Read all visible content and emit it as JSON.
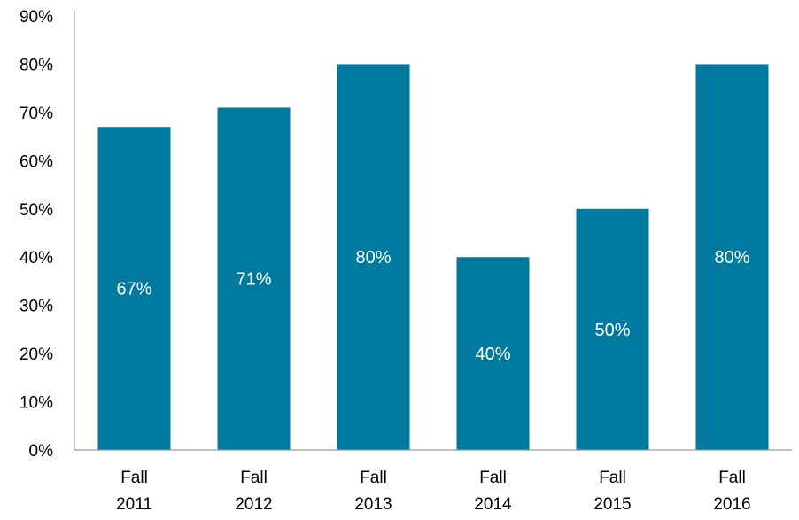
{
  "chart_data": {
    "type": "bar",
    "categories": [
      [
        "Fall",
        "2011"
      ],
      [
        "Fall",
        "2012"
      ],
      [
        "Fall",
        "2013"
      ],
      [
        "Fall",
        "2014"
      ],
      [
        "Fall",
        "2015"
      ],
      [
        "Fall",
        "2016"
      ]
    ],
    "values": [
      67,
      71,
      80,
      40,
      50,
      80
    ],
    "data_labels": [
      "67%",
      "71%",
      "80%",
      "40%",
      "50%",
      "80%"
    ],
    "y_ticks": [
      0,
      10,
      20,
      30,
      40,
      50,
      60,
      70,
      80,
      90
    ],
    "y_tick_labels": [
      "0%",
      "10%",
      "20%",
      "30%",
      "40%",
      "50%",
      "60%",
      "70%",
      "80%",
      "90%"
    ],
    "ylim": [
      0,
      90
    ],
    "grid": false,
    "legend": "none",
    "bar_color": "#00799E",
    "label_color": "#FFFFFF",
    "axis_color": "#999999"
  }
}
